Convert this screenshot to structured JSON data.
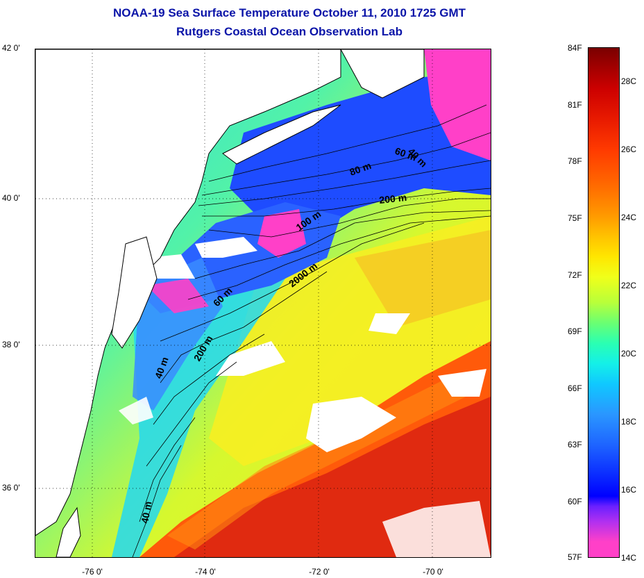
{
  "title": {
    "line1": "NOAA-19 Sea Surface Temperature October 11, 2010 1725 GMT",
    "line2": "Rutgers Coastal Ocean Observation Lab"
  },
  "map": {
    "lat_labels": [
      "42 0'",
      "40 0'",
      "38 0'",
      "36 0'"
    ],
    "lon_labels": [
      "-76 0'",
      "-74 0'",
      "-72 0'",
      "-70 0'"
    ],
    "contour_labels": [
      "40 m",
      "60 m",
      "80 m",
      "200 m",
      "100 m",
      "2000 m",
      "60 m",
      "200 m",
      "40 m",
      "40 m"
    ],
    "colors": {
      "warm_core": "#e02a10",
      "gulf_stream": "#ff5a0a",
      "slope_water": "#f2f020",
      "shelf_mid": "#52f2a8",
      "shelf_cyan": "#2ad8f0",
      "cold_blue": "#1e4cff",
      "coldest_pink": "#ff40c8",
      "cloud": "#ffffff"
    }
  },
  "colorbar": {
    "fahrenheit": [
      "84F",
      "81F",
      "78F",
      "75F",
      "72F",
      "69F",
      "66F",
      "63F",
      "60F",
      "57F"
    ],
    "celsius": [
      "28C",
      "26C",
      "24C",
      "22C",
      "20C",
      "18C",
      "16C",
      "14C"
    ]
  }
}
